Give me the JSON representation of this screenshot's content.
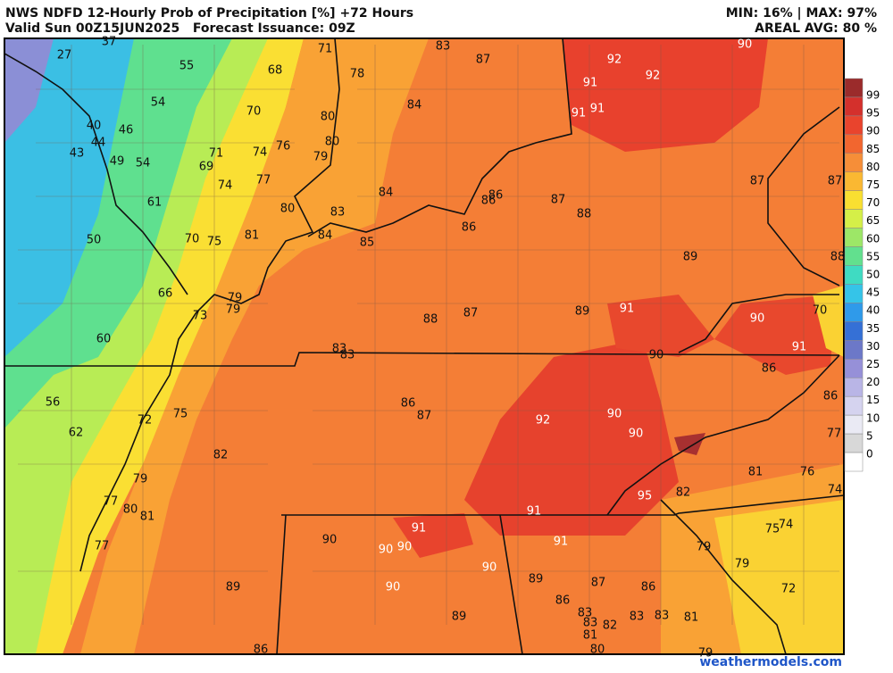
{
  "header": {
    "title": "NWS NDFD 12-Hourly Prob of Precipitation [%] +72 Hours",
    "valid": "Valid Sun 00Z15JUN2025   Forecast Issuance: 09Z",
    "minmax": "MIN: 16% | MAX: 97%",
    "areal_avg": "AREAL AVG: 80 %"
  },
  "map": {
    "labels": [
      37,
      27,
      55,
      54,
      40,
      46,
      44,
      43,
      49,
      54,
      61,
      50,
      66,
      73,
      60,
      56,
      62,
      68,
      71,
      70,
      71,
      69,
      74,
      76,
      74,
      77,
      80,
      70,
      75,
      81,
      79,
      79,
      78,
      80,
      80,
      79,
      84,
      83,
      87,
      84,
      83,
      84,
      85,
      86,
      86,
      87,
      88,
      86,
      89,
      88,
      87,
      87,
      90,
      92,
      92,
      91,
      91,
      91,
      88,
      87,
      89,
      91,
      90,
      70,
      91,
      90,
      83,
      83,
      86,
      86,
      77,
      86,
      87,
      92,
      90,
      90,
      72,
      75,
      82,
      79,
      77,
      80,
      81,
      77,
      81,
      76,
      74,
      95,
      82,
      91,
      91,
      90,
      90,
      90,
      91,
      90,
      74,
      75,
      79,
      79,
      89,
      87,
      86,
      90,
      89,
      72,
      86,
      83,
      83,
      83,
      81,
      82,
      83,
      89,
      81,
      80,
      86,
      79
    ]
  },
  "colorbar": {
    "labels": [
      99,
      95,
      90,
      85,
      80,
      75,
      70,
      65,
      60,
      55,
      50,
      45,
      40,
      35,
      30,
      25,
      20,
      15,
      10,
      5,
      0
    ],
    "colors": [
      "#9b2b2b",
      "#d4302c",
      "#e9442d",
      "#f2662f",
      "#f68e38",
      "#fab832",
      "#f9df31",
      "#d5ef48",
      "#9de767",
      "#62e08e",
      "#3fdbc2",
      "#35c4e8",
      "#2f9aea",
      "#3570d6",
      "#6c78c8",
      "#9690d8",
      "#b9b5e6",
      "#d5d3ef",
      "#eaeaf4",
      "#d8d8d8",
      "#ffffff"
    ]
  },
  "footer": {
    "credit": "weathermodels.com"
  }
}
